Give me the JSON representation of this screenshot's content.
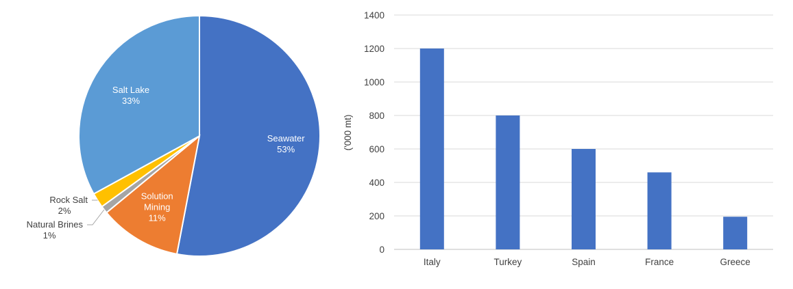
{
  "chart_data": [
    {
      "type": "pie",
      "title": "",
      "colors": {
        "Seawater": "#4472c4",
        "Solution Mining": "#ed7d31",
        "Natural Brines": "#a5a5a5",
        "Rock Salt": "#ffc000",
        "Salt Lake": "#5b9bd5"
      },
      "slices": [
        {
          "label": "Seawater",
          "percent_label": "53%",
          "value": 53
        },
        {
          "label": "Solution Mining",
          "percent_label": "11%",
          "value": 11
        },
        {
          "label": "Natural Brines",
          "percent_label": "1%",
          "value": 1
        },
        {
          "label": "Rock Salt",
          "percent_label": "2%",
          "value": 2
        },
        {
          "label": "Salt Lake",
          "percent_label": "33%",
          "value": 33
        }
      ]
    },
    {
      "type": "bar",
      "title": "",
      "xlabel": "",
      "ylabel": "('000 mt)",
      "ylim": [
        0,
        1400
      ],
      "yticks": [
        0,
        200,
        400,
        600,
        800,
        1000,
        1200,
        1400
      ],
      "grid": true,
      "bar_color": "#4472c4",
      "categories": [
        "Italy",
        "Turkey",
        "Spain",
        "France",
        "Greece"
      ],
      "values": [
        1200,
        800,
        600,
        460,
        195
      ]
    }
  ]
}
